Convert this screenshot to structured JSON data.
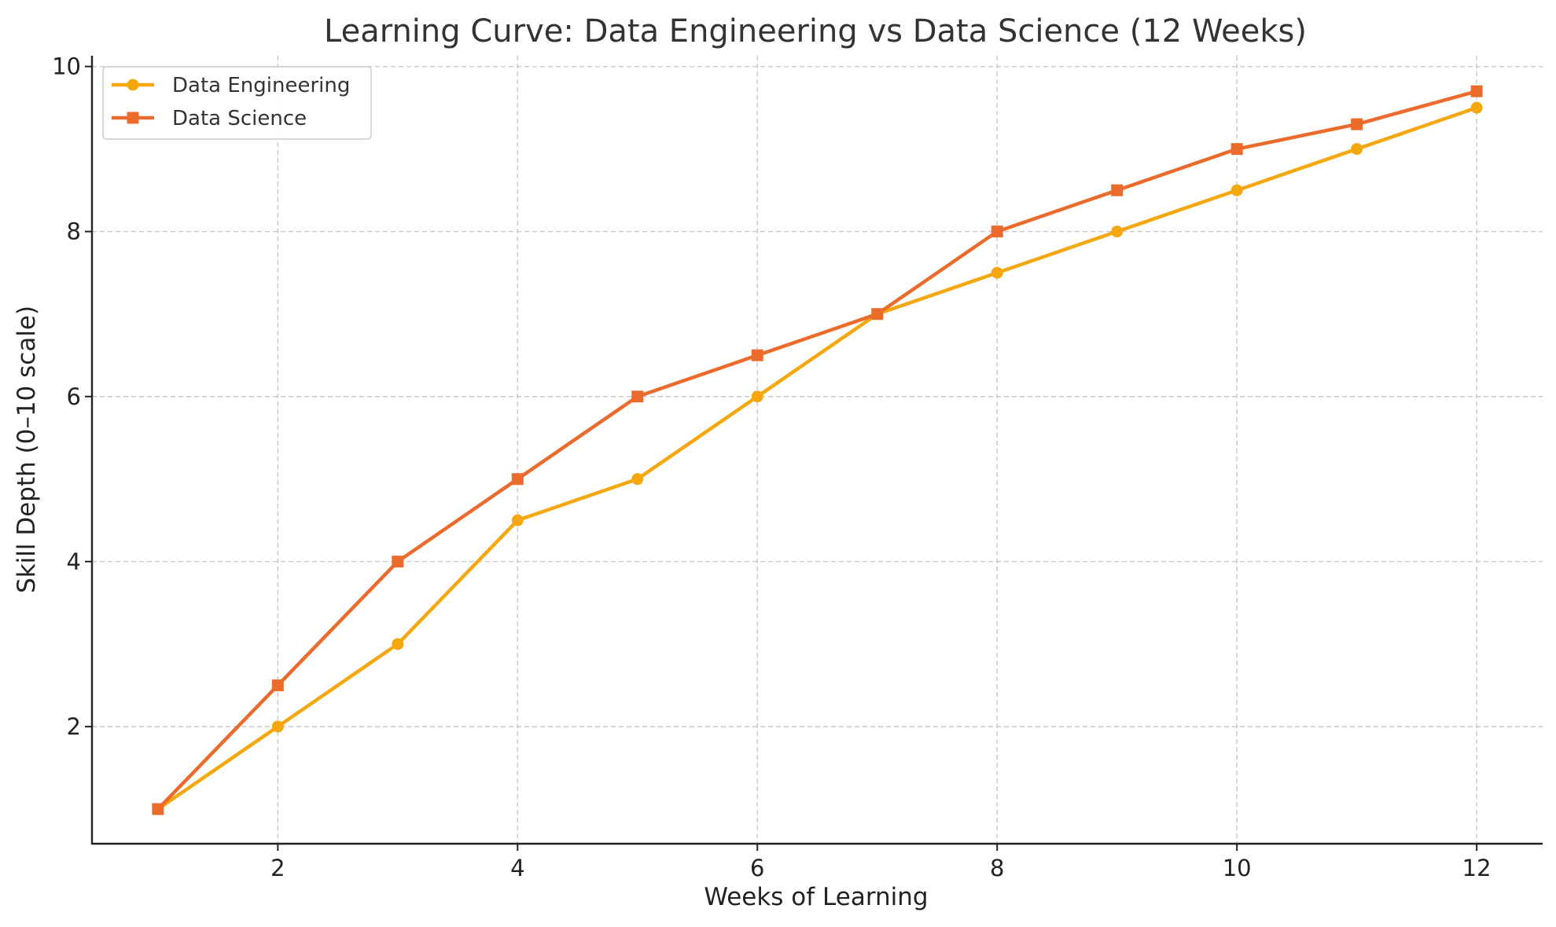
{
  "chart_data": {
    "type": "line",
    "title": "Learning Curve: Data Engineering vs Data Science (12 Weeks)",
    "xlabel": "Weeks of Learning",
    "ylabel": "Skill Depth (0–10 scale)",
    "x": [
      1,
      2,
      3,
      4,
      5,
      6,
      7,
      8,
      9,
      10,
      11,
      12
    ],
    "xlim": [
      0.45,
      12.55
    ],
    "ylim": [
      0.58,
      10.13
    ],
    "xticks": [
      2,
      4,
      6,
      8,
      10,
      12
    ],
    "xtick_labels": [
      "2",
      "4",
      "6",
      "8",
      "10",
      "12"
    ],
    "yticks": [
      2,
      4,
      6,
      8,
      10
    ],
    "ytick_labels": [
      "2",
      "4",
      "6",
      "8",
      "10"
    ],
    "grid": true,
    "legend_position": "top-left",
    "series": [
      {
        "name": "Data Engineering",
        "color": "#F5A80E",
        "marker": "circle",
        "values": [
          1,
          2,
          3,
          4.5,
          5,
          6,
          7,
          7.5,
          8,
          8.5,
          9,
          9.5
        ]
      },
      {
        "name": "Data Science",
        "color": "#EA6B2B",
        "marker": "square",
        "values": [
          1,
          2.5,
          4,
          5,
          6,
          6.5,
          7,
          8,
          8.5,
          9,
          9.3,
          9.7
        ]
      }
    ]
  }
}
